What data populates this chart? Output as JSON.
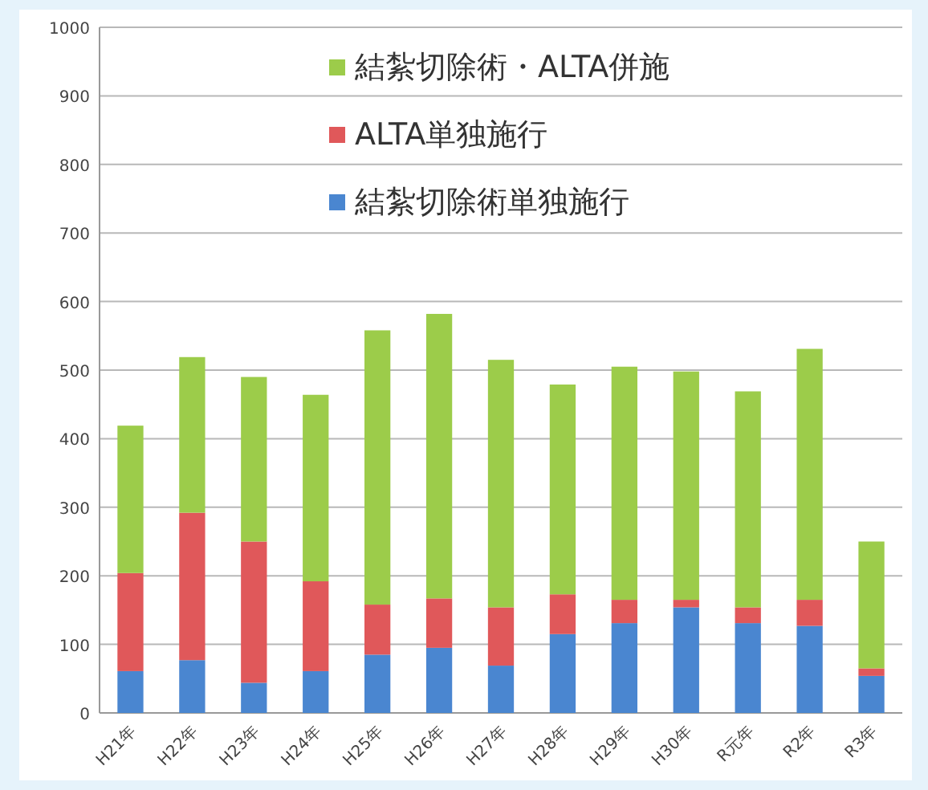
{
  "chart_data": {
    "type": "bar",
    "stacked": true,
    "categories": [
      "H21年",
      "H22年",
      "H23年",
      "H24年",
      "H25年",
      "H26年",
      "H27年",
      "H28年",
      "H29年",
      "H30年",
      "R元年",
      "R2年",
      "R3年"
    ],
    "series": [
      {
        "name": "結紮切除術単独施行",
        "color": "#4a86d0",
        "values": [
          61,
          77,
          44,
          61,
          85,
          95,
          69,
          115,
          131,
          154,
          131,
          127,
          54
        ]
      },
      {
        "name": "ALTA単独施行",
        "color": "#e0585a",
        "values": [
          143,
          215,
          206,
          131,
          73,
          72,
          85,
          58,
          34,
          11,
          23,
          38,
          11
        ]
      },
      {
        "name": "結紮切除術・ALTA併施",
        "color": "#9ccc4a",
        "values": [
          215,
          227,
          240,
          272,
          400,
          415,
          361,
          306,
          340,
          333,
          315,
          366,
          185
        ]
      }
    ],
    "ylim": [
      0,
      1000
    ],
    "yticks": [
      0,
      100,
      200,
      300,
      400,
      500,
      600,
      700,
      800,
      900,
      1000
    ],
    "grid": "y",
    "legend": "top"
  }
}
